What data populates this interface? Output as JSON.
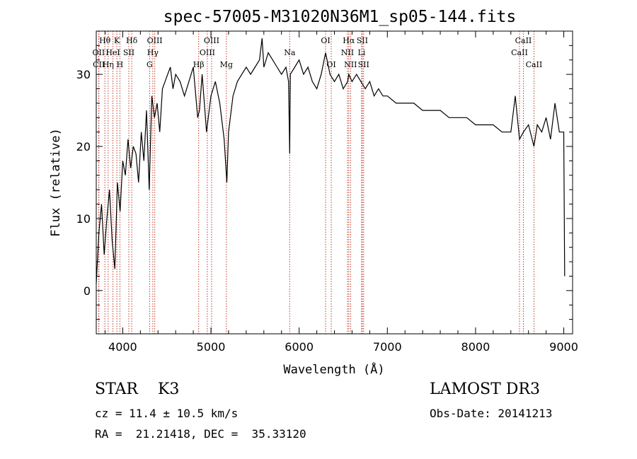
{
  "chart_data": {
    "type": "line",
    "title": "spec-57005-M31020N36M1_sp05-144.fits",
    "xlabel": "Wavelength (Å)",
    "ylabel": "Flux (relative)",
    "xlim": [
      3700,
      9100
    ],
    "ylim": [
      -6,
      36
    ],
    "xticks": [
      4000,
      5000,
      6000,
      7000,
      8000,
      9000
    ],
    "yticks": [
      0,
      10,
      20,
      30
    ],
    "series": [
      {
        "name": "flux",
        "x": [
          3700,
          3730,
          3760,
          3790,
          3820,
          3850,
          3880,
          3910,
          3940,
          3970,
          4000,
          4030,
          4060,
          4090,
          4120,
          4150,
          4180,
          4210,
          4240,
          4270,
          4300,
          4330,
          4360,
          4390,
          4420,
          4450,
          4480,
          4510,
          4540,
          4570,
          4600,
          4650,
          4700,
          4750,
          4800,
          4850,
          4870,
          4900,
          4950,
          5000,
          5050,
          5100,
          5150,
          5180,
          5200,
          5250,
          5300,
          5350,
          5400,
          5450,
          5500,
          5550,
          5580,
          5600,
          5650,
          5700,
          5750,
          5800,
          5850,
          5880,
          5893,
          5900,
          5950,
          6000,
          6050,
          6100,
          6150,
          6200,
          6250,
          6300,
          6350,
          6400,
          6450,
          6500,
          6550,
          6563,
          6600,
          6650,
          6700,
          6750,
          6800,
          6850,
          6900,
          6950,
          7000,
          7100,
          7200,
          7300,
          7400,
          7500,
          7600,
          7700,
          7800,
          7900,
          8000,
          8100,
          8200,
          8300,
          8400,
          8450,
          8498,
          8542,
          8600,
          8662,
          8700,
          8750,
          8800,
          8850,
          8900,
          8950,
          9000,
          9010
        ],
        "values": [
          1,
          8,
          12,
          5,
          10,
          14,
          7,
          3,
          15,
          11,
          18,
          16,
          21,
          17,
          20,
          19,
          15,
          22,
          18,
          25,
          14,
          27,
          24,
          26,
          22,
          28,
          29,
          30,
          31,
          28,
          30,
          29,
          27,
          29,
          31,
          24,
          25,
          30,
          22,
          27,
          29,
          26,
          21,
          15,
          22,
          27,
          29,
          30,
          31,
          30,
          31,
          32,
          35,
          31,
          33,
          32,
          31,
          30,
          31,
          29,
          19,
          30,
          31,
          32,
          30,
          31,
          29,
          28,
          30,
          33,
          30,
          29,
          30,
          28,
          29,
          30,
          29,
          30,
          29,
          28,
          29,
          27,
          28,
          27,
          27,
          26,
          26,
          26,
          25,
          25,
          25,
          24,
          24,
          24,
          23,
          23,
          23,
          22,
          22,
          27,
          21,
          22,
          23,
          20,
          23,
          22,
          24,
          21,
          26,
          22,
          22,
          2
        ]
      }
    ],
    "spectral_lines": [
      {
        "label": "Hθ",
        "x": 3798,
        "row": 0
      },
      {
        "label": "OII",
        "x": 3727,
        "row": 1
      },
      {
        "label": "CII",
        "x": 3730,
        "row": 2
      },
      {
        "label": "K",
        "x": 3934,
        "row": 0
      },
      {
        "label": "HeI",
        "x": 3889,
        "row": 1
      },
      {
        "label": "Hη",
        "x": 3835,
        "row": 2
      },
      {
        "label": "SII",
        "x": 4069,
        "row": 1
      },
      {
        "label": "H",
        "x": 3968,
        "row": 2
      },
      {
        "label": "Hδ",
        "x": 4102,
        "row": 0
      },
      {
        "label": "OIII",
        "x": 4363,
        "row": 0
      },
      {
        "label": "Hγ",
        "x": 4341,
        "row": 1
      },
      {
        "label": "G",
        "x": 4305,
        "row": 2
      },
      {
        "label": "Hβ",
        "x": 4861,
        "row": 2
      },
      {
        "label": "OIII",
        "x": 5007,
        "row": 0
      },
      {
        "label": "OIII",
        "x": 4959,
        "row": 1
      },
      {
        "label": "Mg",
        "x": 5175,
        "row": 2
      },
      {
        "label": "Na",
        "x": 5893,
        "row": 1
      },
      {
        "label": "OI",
        "x": 6300,
        "row": 0
      },
      {
        "label": "OI",
        "x": 6364,
        "row": 2
      },
      {
        "label": "Hα",
        "x": 6563,
        "row": 0
      },
      {
        "label": "SII",
        "x": 6716,
        "row": 0
      },
      {
        "label": "NII",
        "x": 6548,
        "row": 1
      },
      {
        "label": "Li",
        "x": 6708,
        "row": 1
      },
      {
        "label": "NII",
        "x": 6583,
        "row": 2
      },
      {
        "label": "SII",
        "x": 6731,
        "row": 2
      },
      {
        "label": "CaII",
        "x": 8542,
        "row": 0
      },
      {
        "label": "CaII",
        "x": 8498,
        "row": 1
      },
      {
        "label": "CaII",
        "x": 8662,
        "row": 2
      }
    ]
  },
  "info": {
    "class_text": "STAR    K3",
    "survey_text": "LAMOST DR3",
    "cz_text": "cz = 11.4 ± 10.5 km/s",
    "obs_date_text": "Obs-Date: 20141213",
    "coords_text": "RA =  21.21418, DEC =  35.33120"
  }
}
